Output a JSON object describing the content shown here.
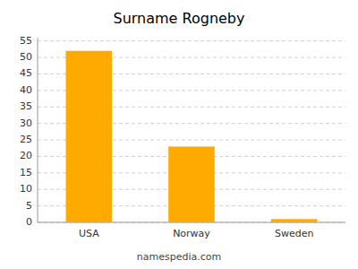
{
  "chart_data": {
    "type": "bar",
    "title": "Surname Rogneby",
    "categories": [
      "USA",
      "Norway",
      "Sweden"
    ],
    "values": [
      52,
      23,
      1
    ],
    "color": "#FFAA00",
    "ylim": [
      0,
      56
    ],
    "yticks": [
      0,
      5,
      10,
      15,
      20,
      25,
      30,
      35,
      40,
      45,
      50,
      55
    ],
    "grid": true,
    "annotations": [
      "namespedia.com"
    ]
  }
}
